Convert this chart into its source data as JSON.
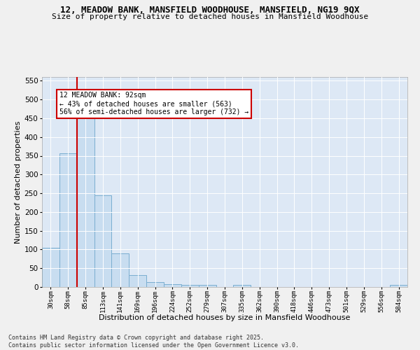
{
  "title_line1": "12, MEADOW BANK, MANSFIELD WOODHOUSE, MANSFIELD, NG19 9QX",
  "title_line2": "Size of property relative to detached houses in Mansfield Woodhouse",
  "xlabel": "Distribution of detached houses by size in Mansfield Woodhouse",
  "ylabel": "Number of detached properties",
  "categories": [
    "30sqm",
    "58sqm",
    "85sqm",
    "113sqm",
    "141sqm",
    "169sqm",
    "196sqm",
    "224sqm",
    "252sqm",
    "279sqm",
    "307sqm",
    "335sqm",
    "362sqm",
    "390sqm",
    "418sqm",
    "446sqm",
    "473sqm",
    "501sqm",
    "529sqm",
    "556sqm",
    "584sqm"
  ],
  "values": [
    105,
    357,
    457,
    245,
    90,
    32,
    13,
    8,
    6,
    5,
    0,
    5,
    0,
    0,
    0,
    0,
    0,
    0,
    0,
    0,
    5
  ],
  "bar_facecolor": "#c8ddf0",
  "bar_edgecolor": "#7aaed0",
  "red_line_x": 2,
  "red_line_color": "#cc0000",
  "annotation_line1": "12 MEADOW BANK: 92sqm",
  "annotation_line2": "← 43% of detached houses are smaller (563)",
  "annotation_line3": "56% of semi-detached houses are larger (732) →",
  "ann_box_facecolor": "#ffffff",
  "ann_box_edgecolor": "#cc0000",
  "ylim": [
    0,
    560
  ],
  "yticks": [
    0,
    50,
    100,
    150,
    200,
    250,
    300,
    350,
    400,
    450,
    500,
    550
  ],
  "plot_facecolor": "#dde8f5",
  "fig_facecolor": "#f0f0f0",
  "grid_color": "#ffffff",
  "footer": "Contains HM Land Registry data © Crown copyright and database right 2025.\nContains public sector information licensed under the Open Government Licence v3.0."
}
